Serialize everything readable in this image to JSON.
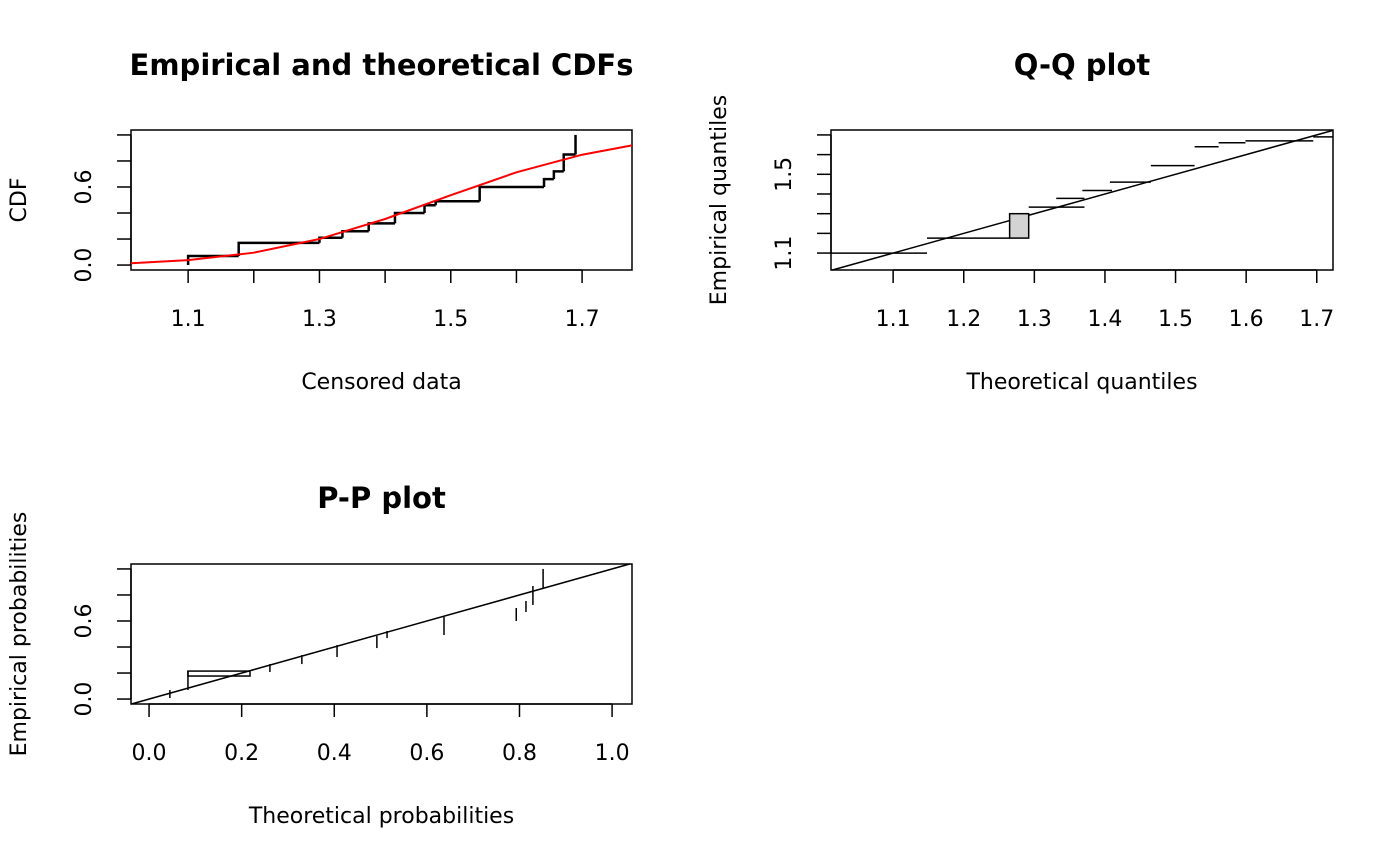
{
  "chart_data": [
    {
      "type": "cdf",
      "title": "Empirical and theoretical CDFs",
      "xlabel": "Censored data",
      "ylabel": "CDF",
      "xlim": [
        1.013,
        1.776
      ],
      "ylim": [
        -0.038,
        1.038
      ],
      "xticks": [
        1.1,
        1.3,
        1.5,
        1.7
      ],
      "xticks_unlabeled": [
        1.2,
        1.4,
        1.6
      ],
      "yticks": [
        {
          "value": 0,
          "label": "0.0"
        },
        0.6
      ],
      "yticks_unlabeled": [
        0.2,
        0.4,
        0.8,
        1
      ],
      "empirical": {
        "color": "#000000",
        "x": [
          1.1,
          1.177,
          1.3,
          1.335,
          1.375,
          1.415,
          1.46,
          1.477,
          1.544,
          1.642,
          1.657,
          1.672,
          1.69
        ],
        "y": [
          0.07,
          0.17,
          0.21,
          0.26,
          0.32,
          0.4,
          0.46,
          0.49,
          0.6,
          0.66,
          0.72,
          0.85,
          1.0
        ]
      },
      "fitted": {
        "color": "#ff0000",
        "x": [
          1.013,
          1.1,
          1.2,
          1.3,
          1.4,
          1.5,
          1.6,
          1.7,
          1.776
        ],
        "y": [
          0.014,
          0.038,
          0.095,
          0.2,
          0.354,
          0.537,
          0.713,
          0.848,
          0.92
        ]
      }
    },
    {
      "type": "qq",
      "title": "Q-Q plot",
      "xlabel": "Theoretical quantiles",
      "ylabel": "Empirical quantiles",
      "xlim": [
        1.012,
        1.723
      ],
      "ylim": [
        1.014,
        1.725
      ],
      "xticks": [
        1.1,
        1.2,
        1.3,
        1.4,
        1.5,
        1.6,
        1.7
      ],
      "xticks_unlabeled": [],
      "yticks": [
        1.1,
        1.5
      ],
      "yticks_unlabeled": [
        1.2,
        1.3,
        1.4,
        1.6,
        1.7
      ],
      "reference_line": true,
      "intervals": {
        "y": [
          1.1,
          1.176,
          1.333,
          1.378,
          1.418,
          1.46,
          1.544,
          1.64,
          1.66,
          1.67,
          1.69
        ],
        "x_low": [
          1.012,
          1.148,
          1.292,
          1.331,
          1.368,
          1.407,
          1.465,
          1.527,
          1.561,
          1.599,
          1.695
        ],
        "x_high": [
          1.148,
          1.265,
          1.371,
          1.371,
          1.41,
          1.465,
          1.527,
          1.561,
          1.599,
          1.695,
          1.723
        ]
      },
      "box": {
        "x": [
          1.265,
          1.292
        ],
        "y": [
          1.176,
          1.3
        ],
        "fill": "#d3d3d3"
      }
    },
    {
      "type": "pp",
      "title": "P-P plot",
      "xlabel": "Theoretical probabilities",
      "ylabel": "Empirical probabilities",
      "xlim": [
        -0.039,
        1.043
      ],
      "ylim": [
        -0.038,
        1.038
      ],
      "xticks": [
        {
          "value": 0,
          "label": "0.0"
        },
        0.2,
        0.4,
        0.6,
        0.8,
        {
          "value": 1,
          "label": "1.0"
        }
      ],
      "xticks_unlabeled": [],
      "yticks": [
        {
          "value": 0,
          "label": "0.0"
        },
        0.6
      ],
      "yticks_unlabeled": [
        0.2,
        0.4,
        0.8,
        1
      ],
      "reference_line": true,
      "intervals": {
        "x": [
          0.045,
          0.084,
          0.261,
          0.33,
          0.406,
          0.492,
          0.514,
          0.637,
          0.793,
          0.814,
          0.829,
          0.851
        ],
        "y_low": [
          0.008,
          0.069,
          0.208,
          0.269,
          0.323,
          0.392,
          0.469,
          0.492,
          0.6,
          0.669,
          0.723,
          0.846
        ],
        "y_high": [
          0.069,
          0.215,
          0.269,
          0.338,
          0.415,
          0.485,
          0.523,
          0.631,
          0.7,
          0.754,
          0.869,
          1.0
        ]
      },
      "box": {
        "x": [
          0.084,
          0.218
        ],
        "y": [
          0.177,
          0.215
        ]
      }
    }
  ]
}
